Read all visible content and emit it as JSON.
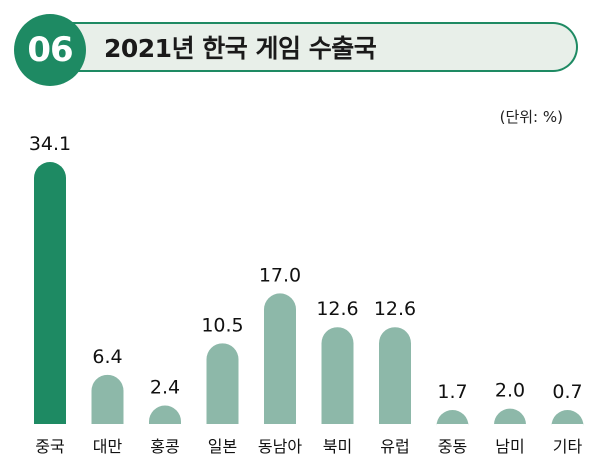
{
  "header": {
    "badge": "06",
    "title": "2021년 한국 게임 수출국"
  },
  "unit_label": "(단위: %)",
  "colors": {
    "accent": "#1e8a63",
    "bar_default": "#8db8a9",
    "title_bg": "#e8efe9"
  },
  "chart_data": {
    "type": "bar",
    "title": "2021년 한국 게임 수출국",
    "unit": "%",
    "categories": [
      "중국",
      "대만",
      "홍콩",
      "일본",
      "동남아",
      "북미",
      "유럽",
      "중동",
      "남미",
      "기타"
    ],
    "values": [
      34.1,
      6.4,
      2.4,
      10.5,
      17.0,
      12.6,
      12.6,
      1.7,
      2.0,
      0.7
    ],
    "value_labels": [
      "34.1",
      "6.4",
      "2.4",
      "10.5",
      "17.0",
      "12.6",
      "12.6",
      "1.7",
      "2.0",
      "0.7"
    ],
    "highlight_index": 0,
    "ylim": [
      0,
      34.1
    ],
    "grid": false,
    "legend": "none"
  }
}
